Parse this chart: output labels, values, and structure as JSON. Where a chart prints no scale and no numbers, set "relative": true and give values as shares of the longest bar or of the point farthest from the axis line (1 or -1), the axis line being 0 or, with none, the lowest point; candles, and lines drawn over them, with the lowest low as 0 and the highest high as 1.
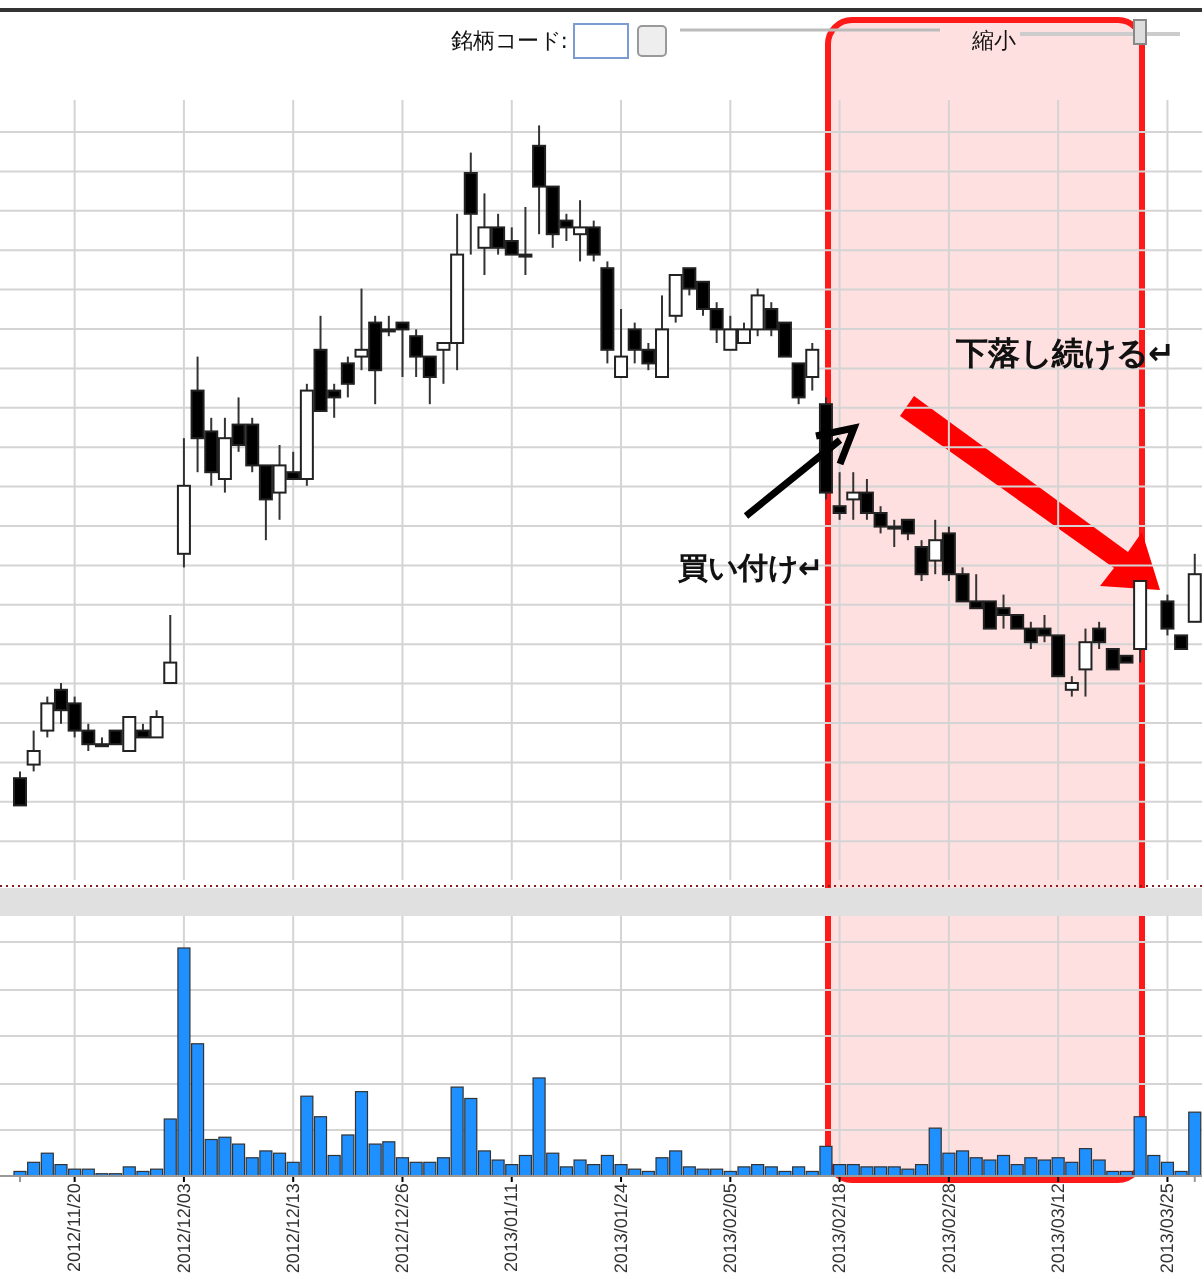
{
  "chart_data": [
    {
      "type": "candlestick",
      "relative": true,
      "tick_labels": false,
      "grid": true,
      "categories": [
        null,
        null,
        null,
        null,
        "2012/11/20",
        null,
        null,
        null,
        null,
        null,
        null,
        null,
        "2012/12/03",
        null,
        null,
        null,
        null,
        null,
        null,
        null,
        "2012/12/13",
        null,
        null,
        null,
        null,
        null,
        null,
        null,
        "2012/12/26",
        null,
        null,
        null,
        null,
        null,
        null,
        null,
        "2013/01/11",
        null,
        null,
        null,
        null,
        null,
        null,
        null,
        "2013/01/24",
        null,
        null,
        null,
        null,
        null,
        null,
        null,
        "2013/02/05",
        null,
        null,
        null,
        null,
        null,
        null,
        null,
        "2013/02/18",
        null,
        null,
        null,
        null,
        null,
        null,
        null,
        "2013/02/28",
        null,
        null,
        null,
        null,
        null,
        null,
        null,
        "2013/03/12",
        null,
        null,
        null,
        null,
        null,
        null,
        null,
        "2013/03/25",
        null,
        null
      ],
      "ohlc": [
        [
          0.04,
          0.05,
          0,
          0
        ],
        [
          0.06,
          0.11,
          0.05,
          0.08
        ],
        [
          0.11,
          0.16,
          0.1,
          0.15
        ],
        [
          0.17,
          0.18,
          0.12,
          0.14
        ],
        [
          0.15,
          0.16,
          0.1,
          0.11
        ],
        [
          0.11,
          0.12,
          0.08,
          0.09
        ],
        [
          0.09,
          0.1,
          0.09,
          0.09
        ],
        [
          0.11,
          0.11,
          0.09,
          0.09
        ],
        [
          0.08,
          0.13,
          0.08,
          0.13
        ],
        [
          0.11,
          0.12,
          0.1,
          0.1
        ],
        [
          0.1,
          0.14,
          0.1,
          0.13
        ],
        [
          0.18,
          0.28,
          0.18,
          0.21
        ],
        [
          0.37,
          0.54,
          0.35,
          0.47
        ],
        [
          0.61,
          0.66,
          0.49,
          0.54
        ],
        [
          0.55,
          0.57,
          0.47,
          0.49
        ],
        [
          0.48,
          0.57,
          0.46,
          0.54
        ],
        [
          0.56,
          0.6,
          0.52,
          0.53
        ],
        [
          0.56,
          0.57,
          0.49,
          0.5
        ],
        [
          0.5,
          0.5,
          0.39,
          0.45
        ],
        [
          0.46,
          0.53,
          0.42,
          0.5
        ],
        [
          0.49,
          0.52,
          0.48,
          0.48
        ],
        [
          0.48,
          0.62,
          0.47,
          0.61
        ],
        [
          0.67,
          0.72,
          0.58,
          0.58
        ],
        [
          0.61,
          0.62,
          0.57,
          0.6
        ],
        [
          0.65,
          0.66,
          0.6,
          0.62
        ],
        [
          0.66,
          0.76,
          0.64,
          0.67
        ],
        [
          0.71,
          0.72,
          0.59,
          0.64
        ],
        [
          0.7,
          0.72,
          0.69,
          0.7
        ],
        [
          0.71,
          0.71,
          0.63,
          0.7
        ],
        [
          0.69,
          0.7,
          0.63,
          0.66
        ],
        [
          0.66,
          0.66,
          0.59,
          0.63
        ],
        [
          0.67,
          0.68,
          0.62,
          0.68
        ],
        [
          0.68,
          0.87,
          0.64,
          0.81
        ],
        [
          0.93,
          0.96,
          0.81,
          0.87
        ],
        [
          0.82,
          0.9,
          0.78,
          0.85
        ],
        [
          0.85,
          0.87,
          0.81,
          0.82
        ],
        [
          0.83,
          0.85,
          0.81,
          0.81
        ],
        [
          0.81,
          0.88,
          0.78,
          0.81
        ],
        [
          0.97,
          1,
          0.84,
          0.91
        ],
        [
          0.91,
          0.91,
          0.82,
          0.84
        ],
        [
          0.86,
          0.87,
          0.83,
          0.85
        ],
        [
          0.84,
          0.89,
          0.8,
          0.85
        ],
        [
          0.85,
          0.86,
          0.8,
          0.81
        ],
        [
          0.79,
          0.8,
          0.65,
          0.67
        ],
        [
          0.63,
          0.73,
          0.63,
          0.66
        ],
        [
          0.7,
          0.71,
          0.65,
          0.67
        ],
        [
          0.67,
          0.68,
          0.64,
          0.65
        ],
        [
          0.63,
          0.75,
          0.63,
          0.7
        ],
        [
          0.72,
          0.78,
          0.71,
          0.78
        ],
        [
          0.79,
          0.79,
          0.75,
          0.76
        ],
        [
          0.77,
          0.77,
          0.72,
          0.73
        ],
        [
          0.73,
          0.74,
          0.68,
          0.7
        ],
        [
          0.67,
          0.72,
          0.67,
          0.7
        ],
        [
          0.68,
          0.71,
          0.68,
          0.7
        ],
        [
          0.7,
          0.76,
          0.69,
          0.75
        ],
        [
          0.73,
          0.74,
          0.69,
          0.7
        ],
        [
          0.71,
          0.71,
          0.66,
          0.66
        ],
        [
          0.65,
          0.65,
          0.59,
          0.6
        ],
        [
          0.63,
          0.68,
          0.61,
          0.67
        ],
        [
          0.59,
          0.6,
          0.45,
          0.46
        ],
        [
          0.44,
          0.49,
          0.42,
          0.43
        ],
        [
          0.45,
          0.49,
          0.42,
          0.46
        ],
        [
          0.46,
          0.48,
          0.42,
          0.43
        ],
        [
          0.43,
          0.44,
          0.4,
          0.41
        ],
        [
          0.41,
          0.42,
          0.38,
          0.41
        ],
        [
          0.42,
          0.42,
          0.39,
          0.4
        ],
        [
          0.38,
          0.39,
          0.33,
          0.34
        ],
        [
          0.36,
          0.42,
          0.34,
          0.39
        ],
        [
          0.4,
          0.41,
          0.33,
          0.34
        ],
        [
          0.34,
          0.35,
          0.3,
          0.3
        ],
        [
          0.3,
          0.34,
          0.29,
          0.29
        ],
        [
          0.3,
          0.3,
          0.26,
          0.26
        ],
        [
          0.29,
          0.31,
          0.26,
          0.28
        ],
        [
          0.28,
          0.28,
          0.26,
          0.26
        ],
        [
          0.26,
          0.27,
          0.23,
          0.24
        ],
        [
          0.26,
          0.28,
          0.24,
          0.25
        ],
        [
          0.25,
          0.25,
          0.19,
          0.19
        ],
        [
          0.17,
          0.19,
          0.16,
          0.18
        ],
        [
          0.2,
          0.26,
          0.16,
          0.24
        ],
        [
          0.26,
          0.27,
          0.23,
          0.24
        ],
        [
          0.23,
          0.23,
          0.2,
          0.2
        ],
        [
          0.22,
          0.22,
          0.21,
          0.21
        ],
        [
          0.23,
          0.33,
          0.21,
          0.33
        ],
        null,
        [
          0.3,
          0.31,
          0.25,
          0.26
        ],
        [
          0.25,
          0.25,
          0.23,
          0.23
        ],
        [
          0.27,
          0.37,
          0.27,
          0.34
        ]
      ],
      "annotations": [
        "銘柄コード:",
        "縮小",
        "買い付け↵",
        "下落し続ける↵"
      ]
    },
    {
      "type": "bar",
      "relative": true,
      "grid": true,
      "color": "#1e90ff",
      "categories": [
        null,
        null,
        null,
        null,
        "2012/11/20",
        null,
        null,
        null,
        null,
        null,
        null,
        null,
        "2012/12/03",
        null,
        null,
        null,
        null,
        null,
        null,
        null,
        "2012/12/13",
        null,
        null,
        null,
        null,
        null,
        null,
        null,
        "2012/12/26",
        null,
        null,
        null,
        null,
        null,
        null,
        null,
        "2013/01/11",
        null,
        null,
        null,
        null,
        null,
        null,
        null,
        "2013/01/24",
        null,
        null,
        null,
        null,
        null,
        null,
        null,
        "2013/02/05",
        null,
        null,
        null,
        null,
        null,
        null,
        null,
        "2013/02/18",
        null,
        null,
        null,
        null,
        null,
        null,
        null,
        "2013/02/28",
        null,
        null,
        null,
        null,
        null,
        null,
        null,
        "2013/03/12",
        null,
        null,
        null,
        null,
        null,
        null,
        null,
        "2013/03/25",
        null,
        null
      ],
      "values": [
        0.02,
        0.06,
        0.1,
        0.05,
        0.03,
        0.03,
        0.01,
        0.01,
        0.04,
        0.02,
        0.03,
        0.25,
        1,
        0.58,
        0.16,
        0.17,
        0.14,
        0.08,
        0.11,
        0.1,
        0.06,
        0.35,
        0.26,
        0.09,
        0.18,
        0.37,
        0.14,
        0.15,
        0.08,
        0.06,
        0.06,
        0.08,
        0.39,
        0.34,
        0.11,
        0.07,
        0.05,
        0.09,
        0.43,
        0.1,
        0.04,
        0.07,
        0.05,
        0.09,
        0.05,
        0.03,
        0.02,
        0.08,
        0.11,
        0.04,
        0.03,
        0.03,
        0.02,
        0.04,
        0.05,
        0.04,
        0.02,
        0.04,
        0.02,
        0.13,
        0.05,
        0.05,
        0.04,
        0.04,
        0.04,
        0.03,
        0.05,
        0.21,
        0.1,
        0.11,
        0.08,
        0.07,
        0.09,
        0.05,
        0.08,
        0.07,
        0.08,
        0.06,
        0.12,
        0.07,
        0.02,
        0.02,
        0.26,
        0.09,
        0.06,
        0.02,
        0.28
      ]
    }
  ]
}
